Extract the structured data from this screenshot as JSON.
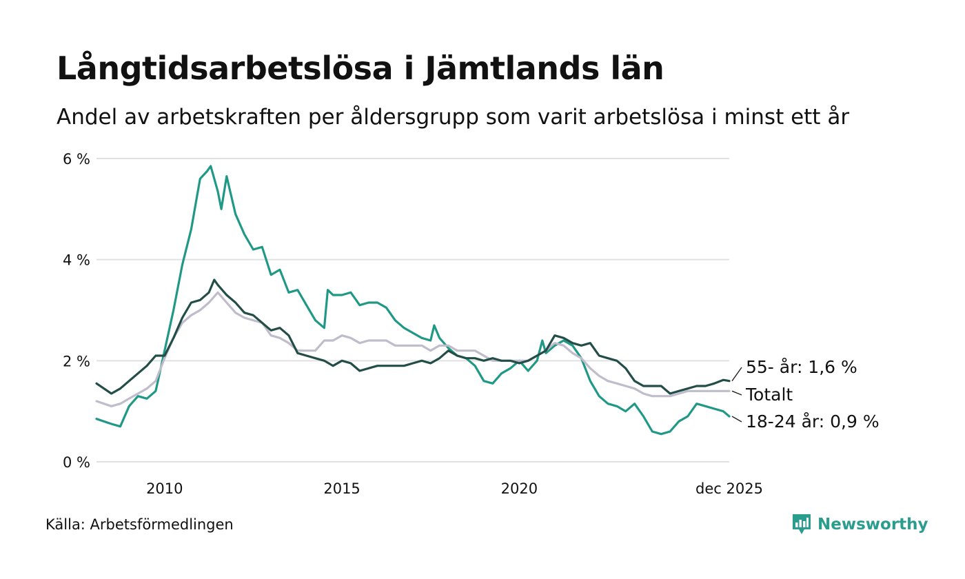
{
  "title": "Långtidsarbetslösa i Jämtlands län",
  "subtitle": "Andel av arbetskraften per åldersgrupp som varit arbetslösa i minst ett år",
  "source": "Källa: Arbetsförmedlingen",
  "brand": {
    "name": "Newsworthy",
    "icon": "newsworthy-logo-icon"
  },
  "colors": {
    "youth": "#1f9985",
    "total": "#bfbccb",
    "older": "#234d47",
    "grid": "#e0e0e0",
    "brand": "#2a9d8f"
  },
  "chart_data": {
    "type": "line",
    "title": "Långtidsarbetslösa i Jämtlands län",
    "xlabel": "",
    "ylabel": "",
    "ylim": [
      0,
      6
    ],
    "xlim": [
      2008.08,
      2025.92
    ],
    "y_ticks": [
      {
        "value": 0,
        "label": "0 %"
      },
      {
        "value": 2,
        "label": "2 %"
      },
      {
        "value": 4,
        "label": "4 %"
      },
      {
        "value": 6,
        "label": "6 %"
      }
    ],
    "x_ticks": [
      {
        "value": 2010,
        "label": "2010"
      },
      {
        "value": 2015,
        "label": "2015"
      },
      {
        "value": 2020,
        "label": "2020"
      },
      {
        "value": 2025.92,
        "label": "dec 2025"
      }
    ],
    "grid": true,
    "series": [
      {
        "name": "18-24 år",
        "end_label": "18-24 år: 0,9 %",
        "color": "#1f9985",
        "points": [
          [
            2008.08,
            0.85
          ],
          [
            2008.5,
            0.75
          ],
          [
            2008.75,
            0.7
          ],
          [
            2009.0,
            1.1
          ],
          [
            2009.25,
            1.3
          ],
          [
            2009.5,
            1.25
          ],
          [
            2009.75,
            1.4
          ],
          [
            2010.0,
            2.2
          ],
          [
            2010.25,
            3.0
          ],
          [
            2010.5,
            3.9
          ],
          [
            2010.75,
            4.6
          ],
          [
            2010.9,
            5.2
          ],
          [
            2011.0,
            5.6
          ],
          [
            2011.2,
            5.75
          ],
          [
            2011.3,
            5.85
          ],
          [
            2011.5,
            5.35
          ],
          [
            2011.6,
            5.0
          ],
          [
            2011.75,
            5.65
          ],
          [
            2012.0,
            4.9
          ],
          [
            2012.25,
            4.5
          ],
          [
            2012.5,
            4.2
          ],
          [
            2012.75,
            4.25
          ],
          [
            2013.0,
            3.7
          ],
          [
            2013.25,
            3.8
          ],
          [
            2013.5,
            3.35
          ],
          [
            2013.75,
            3.4
          ],
          [
            2014.0,
            3.1
          ],
          [
            2014.25,
            2.8
          ],
          [
            2014.5,
            2.65
          ],
          [
            2014.6,
            3.4
          ],
          [
            2014.75,
            3.3
          ],
          [
            2015.0,
            3.3
          ],
          [
            2015.25,
            3.35
          ],
          [
            2015.5,
            3.1
          ],
          [
            2015.75,
            3.15
          ],
          [
            2016.0,
            3.15
          ],
          [
            2016.25,
            3.05
          ],
          [
            2016.5,
            2.8
          ],
          [
            2016.75,
            2.65
          ],
          [
            2017.0,
            2.55
          ],
          [
            2017.25,
            2.45
          ],
          [
            2017.5,
            2.4
          ],
          [
            2017.6,
            2.7
          ],
          [
            2017.75,
            2.45
          ],
          [
            2018.0,
            2.25
          ],
          [
            2018.25,
            2.1
          ],
          [
            2018.5,
            2.05
          ],
          [
            2018.75,
            1.9
          ],
          [
            2019.0,
            1.6
          ],
          [
            2019.25,
            1.55
          ],
          [
            2019.5,
            1.75
          ],
          [
            2019.75,
            1.85
          ],
          [
            2020.0,
            2.0
          ],
          [
            2020.25,
            1.8
          ],
          [
            2020.5,
            2.0
          ],
          [
            2020.65,
            2.4
          ],
          [
            2020.75,
            2.15
          ],
          [
            2021.0,
            2.3
          ],
          [
            2021.25,
            2.4
          ],
          [
            2021.5,
            2.3
          ],
          [
            2021.75,
            2.05
          ],
          [
            2022.0,
            1.6
          ],
          [
            2022.25,
            1.3
          ],
          [
            2022.5,
            1.15
          ],
          [
            2022.75,
            1.1
          ],
          [
            2023.0,
            1.0
          ],
          [
            2023.25,
            1.15
          ],
          [
            2023.5,
            0.9
          ],
          [
            2023.75,
            0.6
          ],
          [
            2024.0,
            0.55
          ],
          [
            2024.25,
            0.6
          ],
          [
            2024.5,
            0.8
          ],
          [
            2024.75,
            0.9
          ],
          [
            2025.0,
            1.15
          ],
          [
            2025.25,
            1.1
          ],
          [
            2025.5,
            1.05
          ],
          [
            2025.75,
            1.0
          ],
          [
            2025.92,
            0.9
          ]
        ]
      },
      {
        "name": "Totalt",
        "end_label": "Totalt",
        "color": "#bfbccb",
        "points": [
          [
            2008.08,
            1.2
          ],
          [
            2008.5,
            1.1
          ],
          [
            2008.75,
            1.15
          ],
          [
            2009.0,
            1.25
          ],
          [
            2009.25,
            1.35
          ],
          [
            2009.5,
            1.45
          ],
          [
            2009.75,
            1.6
          ],
          [
            2010.0,
            2.05
          ],
          [
            2010.25,
            2.45
          ],
          [
            2010.5,
            2.75
          ],
          [
            2010.75,
            2.9
          ],
          [
            2011.0,
            3.0
          ],
          [
            2011.25,
            3.15
          ],
          [
            2011.5,
            3.35
          ],
          [
            2011.75,
            3.15
          ],
          [
            2012.0,
            2.95
          ],
          [
            2012.25,
            2.85
          ],
          [
            2012.5,
            2.8
          ],
          [
            2012.75,
            2.75
          ],
          [
            2013.0,
            2.5
          ],
          [
            2013.25,
            2.45
          ],
          [
            2013.5,
            2.35
          ],
          [
            2013.75,
            2.2
          ],
          [
            2014.0,
            2.2
          ],
          [
            2014.25,
            2.2
          ],
          [
            2014.5,
            2.4
          ],
          [
            2014.75,
            2.4
          ],
          [
            2015.0,
            2.5
          ],
          [
            2015.25,
            2.45
          ],
          [
            2015.5,
            2.35
          ],
          [
            2015.75,
            2.4
          ],
          [
            2016.0,
            2.4
          ],
          [
            2016.25,
            2.4
          ],
          [
            2016.5,
            2.3
          ],
          [
            2016.75,
            2.3
          ],
          [
            2017.0,
            2.3
          ],
          [
            2017.25,
            2.3
          ],
          [
            2017.5,
            2.2
          ],
          [
            2017.75,
            2.3
          ],
          [
            2018.0,
            2.3
          ],
          [
            2018.25,
            2.2
          ],
          [
            2018.5,
            2.2
          ],
          [
            2018.75,
            2.2
          ],
          [
            2019.0,
            2.1
          ],
          [
            2019.25,
            2.0
          ],
          [
            2019.5,
            2.0
          ],
          [
            2019.75,
            2.0
          ],
          [
            2020.0,
            2.0
          ],
          [
            2020.25,
            2.0
          ],
          [
            2020.5,
            2.1
          ],
          [
            2020.75,
            2.2
          ],
          [
            2021.0,
            2.35
          ],
          [
            2021.25,
            2.3
          ],
          [
            2021.5,
            2.15
          ],
          [
            2021.75,
            2.05
          ],
          [
            2022.0,
            1.85
          ],
          [
            2022.25,
            1.7
          ],
          [
            2022.5,
            1.6
          ],
          [
            2022.75,
            1.55
          ],
          [
            2023.0,
            1.5
          ],
          [
            2023.25,
            1.45
          ],
          [
            2023.5,
            1.35
          ],
          [
            2023.75,
            1.3
          ],
          [
            2024.0,
            1.3
          ],
          [
            2024.25,
            1.3
          ],
          [
            2024.5,
            1.35
          ],
          [
            2024.75,
            1.4
          ],
          [
            2025.0,
            1.4
          ],
          [
            2025.25,
            1.4
          ],
          [
            2025.5,
            1.4
          ],
          [
            2025.92,
            1.4
          ]
        ]
      },
      {
        "name": "55- år",
        "end_label": "55- år: 1,6 %",
        "color": "#234d47",
        "points": [
          [
            2008.08,
            1.55
          ],
          [
            2008.5,
            1.35
          ],
          [
            2008.75,
            1.45
          ],
          [
            2009.0,
            1.6
          ],
          [
            2009.25,
            1.75
          ],
          [
            2009.5,
            1.9
          ],
          [
            2009.75,
            2.1
          ],
          [
            2010.0,
            2.1
          ],
          [
            2010.25,
            2.45
          ],
          [
            2010.5,
            2.85
          ],
          [
            2010.75,
            3.15
          ],
          [
            2011.0,
            3.2
          ],
          [
            2011.25,
            3.35
          ],
          [
            2011.4,
            3.6
          ],
          [
            2011.5,
            3.5
          ],
          [
            2011.75,
            3.3
          ],
          [
            2012.0,
            3.15
          ],
          [
            2012.25,
            2.95
          ],
          [
            2012.5,
            2.9
          ],
          [
            2012.75,
            2.75
          ],
          [
            2013.0,
            2.6
          ],
          [
            2013.25,
            2.65
          ],
          [
            2013.5,
            2.5
          ],
          [
            2013.75,
            2.15
          ],
          [
            2014.0,
            2.1
          ],
          [
            2014.25,
            2.05
          ],
          [
            2014.5,
            2.0
          ],
          [
            2014.75,
            1.9
          ],
          [
            2015.0,
            2.0
          ],
          [
            2015.25,
            1.95
          ],
          [
            2015.5,
            1.8
          ],
          [
            2015.75,
            1.85
          ],
          [
            2016.0,
            1.9
          ],
          [
            2016.25,
            1.9
          ],
          [
            2016.5,
            1.9
          ],
          [
            2016.75,
            1.9
          ],
          [
            2017.0,
            1.95
          ],
          [
            2017.25,
            2.0
          ],
          [
            2017.5,
            1.95
          ],
          [
            2017.75,
            2.05
          ],
          [
            2018.0,
            2.2
          ],
          [
            2018.25,
            2.1
          ],
          [
            2018.5,
            2.05
          ],
          [
            2018.75,
            2.05
          ],
          [
            2019.0,
            2.0
          ],
          [
            2019.25,
            2.05
          ],
          [
            2019.5,
            2.0
          ],
          [
            2019.75,
            2.0
          ],
          [
            2020.0,
            1.95
          ],
          [
            2020.25,
            2.0
          ],
          [
            2020.5,
            2.1
          ],
          [
            2020.75,
            2.2
          ],
          [
            2021.0,
            2.5
          ],
          [
            2021.25,
            2.45
          ],
          [
            2021.5,
            2.35
          ],
          [
            2021.75,
            2.3
          ],
          [
            2022.0,
            2.35
          ],
          [
            2022.25,
            2.1
          ],
          [
            2022.5,
            2.05
          ],
          [
            2022.75,
            2.0
          ],
          [
            2023.0,
            1.85
          ],
          [
            2023.25,
            1.6
          ],
          [
            2023.5,
            1.5
          ],
          [
            2023.75,
            1.5
          ],
          [
            2024.0,
            1.5
          ],
          [
            2024.25,
            1.35
          ],
          [
            2024.5,
            1.4
          ],
          [
            2024.75,
            1.45
          ],
          [
            2025.0,
            1.5
          ],
          [
            2025.25,
            1.5
          ],
          [
            2025.5,
            1.55
          ],
          [
            2025.75,
            1.62
          ],
          [
            2025.92,
            1.6
          ]
        ]
      }
    ]
  }
}
